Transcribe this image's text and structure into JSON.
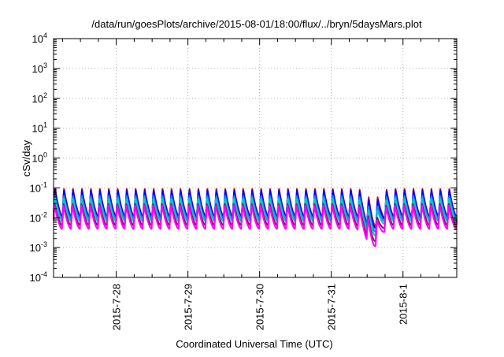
{
  "chart_data": {
    "type": "line",
    "title": "/data/run/goesPlots/archive/2015-08-01/18:00/flux/../bryn/5daysMars.plot",
    "xlabel": "Coordinated Universal Time (UTC)",
    "ylabel": "cSv/day",
    "yscale": "log",
    "ylim": [
      0.0001,
      10000
    ],
    "y_ticks": [
      {
        "value": 0.0001,
        "base": "10",
        "exp": "-4"
      },
      {
        "value": 0.001,
        "base": "10",
        "exp": "-3"
      },
      {
        "value": 0.01,
        "base": "10",
        "exp": "-2"
      },
      {
        "value": 0.1,
        "base": "10",
        "exp": "-1"
      },
      {
        "value": 1,
        "base": "10",
        "exp": "0"
      },
      {
        "value": 10,
        "base": "10",
        "exp": "1"
      },
      {
        "value": 100,
        "base": "10",
        "exp": "2"
      },
      {
        "value": 1000,
        "base": "10",
        "exp": "3"
      },
      {
        "value": 10000,
        "base": "10",
        "exp": "4"
      }
    ],
    "xlim": [
      "2015-07-27 03:00",
      "2015-08-01 18:00"
    ],
    "x_ticks": [
      "2015-7-28",
      "2015-7-29",
      "2015-7-30",
      "2015-7-31",
      "2015-8-1"
    ],
    "x_tick_dates": [
      "2015-07-28",
      "2015-07-29",
      "2015-07-30",
      "2015-07-31",
      "2015-08-01"
    ],
    "grid": true,
    "cycle_hours": 3,
    "dip_center": "2015-07-31 14:00",
    "series": [
      {
        "color": "#e8001a",
        "low": 0.011,
        "high": 0.095
      },
      {
        "color": "#0000ff",
        "low": 0.0105,
        "high": 0.09
      },
      {
        "color": "#0088ff",
        "low": 0.009,
        "high": 0.06
      },
      {
        "color": "#00c8c8",
        "low": 0.0075,
        "high": 0.05
      },
      {
        "color": "#8a1060",
        "low": 0.0055,
        "high": 0.03
      },
      {
        "color": "#ff00ff",
        "low": 0.0042,
        "high": 0.026
      }
    ]
  }
}
